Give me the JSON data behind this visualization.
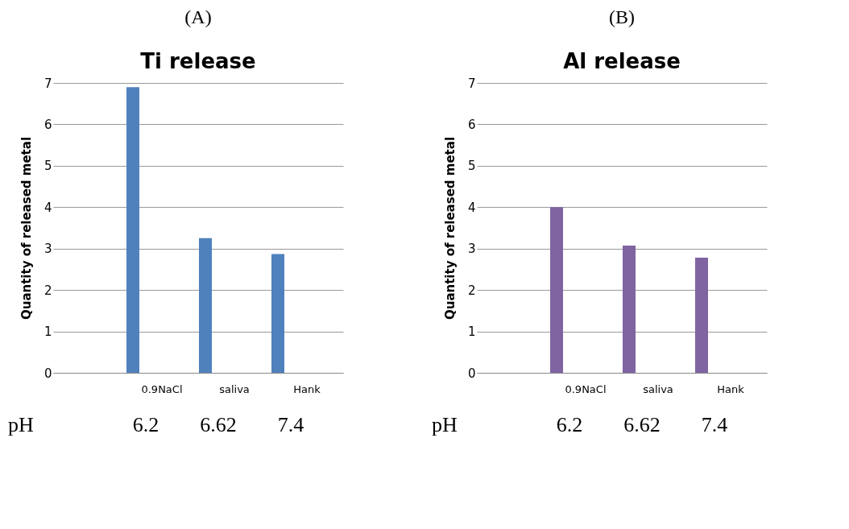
{
  "chart_data": [
    {
      "type": "bar",
      "title": "(A)",
      "subtitle": "Ti    release",
      "ylabel": "Quantity  of  released  metal",
      "categories": [
        null,
        "0.9NaCl",
        "saliva",
        "Hank"
      ],
      "values": [
        null,
        6.9,
        3.25,
        2.87
      ],
      "color": "#4f81bd",
      "ylim": [
        0,
        7
      ],
      "yticks": [
        0,
        1,
        2,
        3,
        4,
        5,
        6,
        7
      ],
      "grid": "y",
      "annotations": [
        "pH",
        "6.2",
        "6.62",
        "7.4"
      ]
    },
    {
      "type": "bar",
      "title": "(B)",
      "subtitle": "Al    release",
      "ylabel": "Quantity  of  released  metal",
      "categories": [
        null,
        "0.9NaCl",
        "saliva",
        "Hank"
      ],
      "values": [
        null,
        4.0,
        3.07,
        2.78
      ],
      "color": "#8064a2",
      "ylim": [
        0,
        7
      ],
      "yticks": [
        0,
        1,
        2,
        3,
        4,
        5,
        6,
        7
      ],
      "grid": "y",
      "annotations": [
        "pH",
        "6.2",
        "6.62",
        "7.4"
      ]
    }
  ]
}
